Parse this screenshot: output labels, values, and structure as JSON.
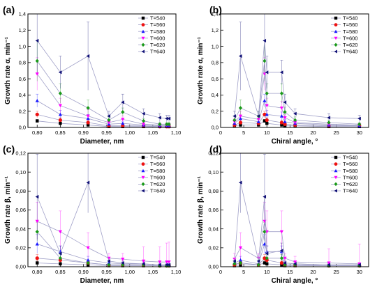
{
  "chart_data": [
    {
      "panel": "(a)",
      "type": "line",
      "xlabel": "Diameter, nm",
      "ylabel": "Growth rate α, min⁻¹",
      "xlim": [
        0.78,
        1.1
      ],
      "ylim": [
        0,
        1.4
      ],
      "xticks": [
        0.8,
        0.85,
        0.9,
        0.95,
        1.0,
        1.05,
        1.1
      ],
      "xtick_labels": [
        "0,80",
        "0,85",
        "0,90",
        "0,95",
        "1,00",
        "1,05",
        "1,10"
      ],
      "yticks": [
        0,
        0.2,
        0.4,
        0.6,
        0.8,
        1.0,
        1.2,
        1.4
      ],
      "ytick_labels": [
        "0,0",
        "0,2",
        "0,4",
        "0,6",
        "0,8",
        "1,0",
        "1,2",
        "1,4"
      ],
      "legend_position": "top-right",
      "x": [
        0.8,
        0.85,
        0.91,
        0.955,
        0.985,
        1.03,
        1.065,
        1.08,
        1.085
      ],
      "series": [
        {
          "name": "T=540",
          "values": [
            0.08,
            0.05,
            0.03,
            0.01,
            0.01,
            0.01,
            0.01,
            0.01,
            0.01
          ],
          "err": [
            0.02,
            0.02,
            0.02,
            0.01,
            0.01,
            0.01,
            0.01,
            0.01,
            0.01
          ]
        },
        {
          "name": "T=560",
          "values": [
            0.16,
            0.09,
            0.06,
            0.02,
            0.02,
            0.02,
            0.01,
            0.01,
            0.01
          ],
          "err": [
            0.04,
            0.03,
            0.03,
            0.01,
            0.01,
            0.01,
            0.01,
            0.01,
            0.01
          ]
        },
        {
          "name": "T=580",
          "values": [
            0.33,
            0.16,
            0.11,
            0.04,
            0.05,
            0.03,
            0.02,
            0.02,
            0.02
          ],
          "err": [
            0.08,
            0.05,
            0.05,
            0.02,
            0.02,
            0.02,
            0.01,
            0.01,
            0.01
          ]
        },
        {
          "name": "T=600",
          "values": [
            0.66,
            0.27,
            0.14,
            0.06,
            0.1,
            0.04,
            0.03,
            0.03,
            0.03
          ],
          "err": [
            0.2,
            0.09,
            0.08,
            0.03,
            0.04,
            0.02,
            0.02,
            0.02,
            0.02
          ]
        },
        {
          "name": "T=620",
          "values": [
            0.82,
            0.42,
            0.24,
            0.09,
            0.19,
            0.08,
            0.04,
            0.04,
            0.04
          ],
          "err": [
            0.25,
            0.12,
            0.1,
            0.04,
            0.05,
            0.03,
            0.02,
            0.02,
            0.02
          ]
        },
        {
          "name": "T=640",
          "values": [
            1.07,
            0.68,
            0.88,
            0.14,
            0.31,
            0.17,
            0.12,
            0.11,
            0.11
          ],
          "err": [
            0.4,
            0.2,
            0.42,
            0.06,
            0.1,
            0.06,
            0.05,
            0.04,
            0.04
          ]
        }
      ]
    },
    {
      "panel": "(b)",
      "type": "line",
      "xlabel": "Chiral angle, °",
      "ylabel": "Growth rate α, min⁻¹",
      "xlim": [
        0,
        32
      ],
      "ylim": [
        0,
        1.4
      ],
      "xticks": [
        0,
        5,
        10,
        15,
        20,
        25,
        30
      ],
      "xtick_labels": [
        "0",
        "5",
        "10",
        "15",
        "20",
        "25",
        "30"
      ],
      "yticks": [
        0,
        0.2,
        0.4,
        0.6,
        0.8,
        1.0,
        1.2,
        1.4
      ],
      "ytick_labels": [
        "0,0",
        "0,2",
        "0,4",
        "0,6",
        "0,8",
        "1,0",
        "1,2",
        "1,4"
      ],
      "legend_position": "top-right",
      "x": [
        3.0,
        4.3,
        8.2,
        9.5,
        10.0,
        13.2,
        13.9,
        16.1,
        23.4,
        30.0
      ],
      "series": [
        {
          "name": "T=540",
          "values": [
            0.02,
            0.03,
            0.03,
            0.08,
            0.05,
            0.03,
            0.02,
            0.02,
            0.01,
            0.01
          ],
          "err": [
            0.01,
            0.02,
            0.02,
            0.02,
            0.02,
            0.02,
            0.01,
            0.01,
            0.01,
            0.01
          ]
        },
        {
          "name": "T=560",
          "values": [
            0.03,
            0.06,
            0.05,
            0.16,
            0.09,
            0.06,
            0.04,
            0.03,
            0.02,
            0.02
          ],
          "err": [
            0.02,
            0.03,
            0.02,
            0.04,
            0.03,
            0.03,
            0.02,
            0.02,
            0.01,
            0.01
          ]
        },
        {
          "name": "T=580",
          "values": [
            0.05,
            0.11,
            0.07,
            0.33,
            0.16,
            0.14,
            0.07,
            0.05,
            0.03,
            0.02
          ],
          "err": [
            0.03,
            0.04,
            0.03,
            0.08,
            0.05,
            0.05,
            0.03,
            0.02,
            0.02,
            0.01
          ]
        },
        {
          "name": "T=600",
          "values": [
            0.07,
            0.14,
            0.1,
            0.66,
            0.27,
            0.24,
            0.12,
            0.06,
            0.04,
            0.03
          ],
          "err": [
            0.04,
            0.06,
            0.04,
            0.2,
            0.09,
            0.08,
            0.04,
            0.03,
            0.02,
            0.02
          ]
        },
        {
          "name": "T=620",
          "values": [
            0.09,
            0.24,
            0.14,
            0.82,
            0.42,
            0.42,
            0.19,
            0.09,
            0.06,
            0.04
          ],
          "err": [
            0.05,
            0.1,
            0.06,
            0.25,
            0.12,
            0.12,
            0.06,
            0.04,
            0.03,
            0.02
          ]
        },
        {
          "name": "T=640",
          "values": [
            0.14,
            0.88,
            0.14,
            1.07,
            0.68,
            0.68,
            0.31,
            0.17,
            0.12,
            0.11
          ],
          "err": [
            0.06,
            0.42,
            0.06,
            0.4,
            0.2,
            0.15,
            0.1,
            0.06,
            0.05,
            0.04
          ]
        }
      ]
    },
    {
      "panel": "(c)",
      "type": "line",
      "xlabel": "Diameter, nm",
      "ylabel": "Growth rate β, min⁻¹",
      "xlim": [
        0.78,
        1.1
      ],
      "ylim": [
        0,
        0.12
      ],
      "xticks": [
        0.8,
        0.85,
        0.9,
        0.95,
        1.0,
        1.05,
        1.1
      ],
      "xtick_labels": [
        "0,80",
        "0,85",
        "0,90",
        "0,95",
        "1,00",
        "1,05",
        "1,10"
      ],
      "yticks": [
        0,
        0.02,
        0.04,
        0.06,
        0.08,
        0.1,
        0.12
      ],
      "ytick_labels": [
        "0,00",
        "0,02",
        "0,04",
        "0,06",
        "0,08",
        "0,10",
        "0,12"
      ],
      "legend_position": "top-right",
      "x": [
        0.8,
        0.85,
        0.91,
        0.955,
        0.985,
        1.03,
        1.065,
        1.08,
        1.085
      ],
      "series": [
        {
          "name": "T=540",
          "values": [
            0.004,
            0.003,
            0.002,
            0.001,
            0.001,
            0.001,
            0.001,
            0.001,
            0.001
          ],
          "err": [
            0.002,
            0.002,
            0.001,
            0.001,
            0.001,
            0.001,
            0.001,
            0.001,
            0.001
          ]
        },
        {
          "name": "T=560",
          "values": [
            0.009,
            0.007,
            0.004,
            0.002,
            0.002,
            0.002,
            0.001,
            0.001,
            0.001
          ],
          "err": [
            0.004,
            0.003,
            0.002,
            0.001,
            0.001,
            0.001,
            0.001,
            0.001,
            0.001
          ]
        },
        {
          "name": "T=580",
          "values": [
            0.024,
            0.016,
            0.007,
            0.004,
            0.003,
            0.003,
            0.002,
            0.002,
            0.002
          ],
          "err": [
            0.01,
            0.006,
            0.004,
            0.002,
            0.002,
            0.002,
            0.001,
            0.001,
            0.001
          ]
        },
        {
          "name": "T=600",
          "values": [
            0.048,
            0.037,
            0.02,
            0.009,
            0.008,
            0.006,
            0.005,
            0.005,
            0.005
          ],
          "err": [
            0.02,
            0.022,
            0.016,
            0.005,
            0.006,
            0.015,
            0.016,
            0.02,
            0.021
          ]
        },
        {
          "name": "T=620",
          "values": [
            0.037,
            0.009,
            0.004,
            0.002,
            0.002,
            0.002,
            0.001,
            0.001,
            0.001
          ],
          "err": [
            0.01,
            0.004,
            0.002,
            0.001,
            0.001,
            0.001,
            0.001,
            0.001,
            0.001
          ]
        },
        {
          "name": "T=640",
          "values": [
            0.074,
            0.014,
            0.089,
            0.006,
            0.004,
            0.003,
            0.002,
            0.002,
            0.002
          ],
          "err": [
            0.045,
            0.008,
            0.032,
            0.003,
            0.002,
            0.002,
            0.001,
            0.001,
            0.001
          ]
        }
      ]
    },
    {
      "panel": "(d)",
      "type": "line",
      "xlabel": "Chiral angle, °",
      "ylabel": "Growth rate β, min⁻¹",
      "xlim": [
        0,
        32
      ],
      "ylim": [
        0,
        0.12
      ],
      "xticks": [
        0,
        5,
        10,
        15,
        20,
        25,
        30
      ],
      "xtick_labels": [
        "0",
        "5",
        "10",
        "15",
        "20",
        "25",
        "30"
      ],
      "yticks": [
        0,
        0.02,
        0.04,
        0.06,
        0.08,
        0.1,
        0.12
      ],
      "ytick_labels": [
        "0,00",
        "0,02",
        "0,04",
        "0,06",
        "0,08",
        "0,10",
        "0,12"
      ],
      "legend_position": "top-right",
      "x": [
        3.0,
        4.3,
        8.2,
        9.5,
        10.0,
        13.2,
        13.9,
        16.1,
        23.4,
        30.0
      ],
      "series": [
        {
          "name": "T=540",
          "values": [
            0.001,
            0.002,
            0.002,
            0.004,
            0.003,
            0.002,
            0.001,
            0.001,
            0.001,
            0.001
          ],
          "err": [
            0.001,
            0.001,
            0.001,
            0.002,
            0.002,
            0.001,
            0.001,
            0.001,
            0.001,
            0.001
          ]
        },
        {
          "name": "T=560",
          "values": [
            0.002,
            0.004,
            0.002,
            0.009,
            0.007,
            0.004,
            0.002,
            0.002,
            0.001,
            0.001
          ],
          "err": [
            0.001,
            0.002,
            0.001,
            0.004,
            0.003,
            0.002,
            0.001,
            0.001,
            0.001,
            0.001
          ]
        },
        {
          "name": "T=580",
          "values": [
            0.004,
            0.007,
            0.003,
            0.024,
            0.016,
            0.016,
            0.004,
            0.003,
            0.002,
            0.002
          ],
          "err": [
            0.002,
            0.004,
            0.002,
            0.01,
            0.006,
            0.006,
            0.002,
            0.002,
            0.001,
            0.001
          ]
        },
        {
          "name": "T=600",
          "values": [
            0.008,
            0.02,
            0.009,
            0.048,
            0.037,
            0.037,
            0.009,
            0.005,
            0.004,
            0.003
          ],
          "err": [
            0.006,
            0.016,
            0.005,
            0.02,
            0.022,
            0.022,
            0.005,
            0.006,
            0.015,
            0.021
          ]
        },
        {
          "name": "T=620",
          "values": [
            0.003,
            0.004,
            0.002,
            0.037,
            0.009,
            0.009,
            0.002,
            0.002,
            0.001,
            0.001
          ],
          "err": [
            0.002,
            0.002,
            0.001,
            0.01,
            0.004,
            0.004,
            0.001,
            0.001,
            0.001,
            0.001
          ]
        },
        {
          "name": "T=640",
          "values": [
            0.006,
            0.089,
            0.006,
            0.074,
            0.014,
            0.017,
            0.004,
            0.003,
            0.002,
            0.002
          ],
          "err": [
            0.003,
            0.032,
            0.003,
            0.045,
            0.008,
            0.008,
            0.002,
            0.002,
            0.001,
            0.001
          ]
        }
      ]
    }
  ],
  "style": {
    "series_colors": [
      "#000000",
      "#ee1111",
      "#1a1aff",
      "#ff00ff",
      "#199919",
      "#111177"
    ],
    "series_markers": [
      "square",
      "circle",
      "triangle-up",
      "triangle-down",
      "diamond",
      "triangle-left"
    ],
    "line_color": "#a0a0c8",
    "errorbar_color": "#c8a0c8"
  }
}
